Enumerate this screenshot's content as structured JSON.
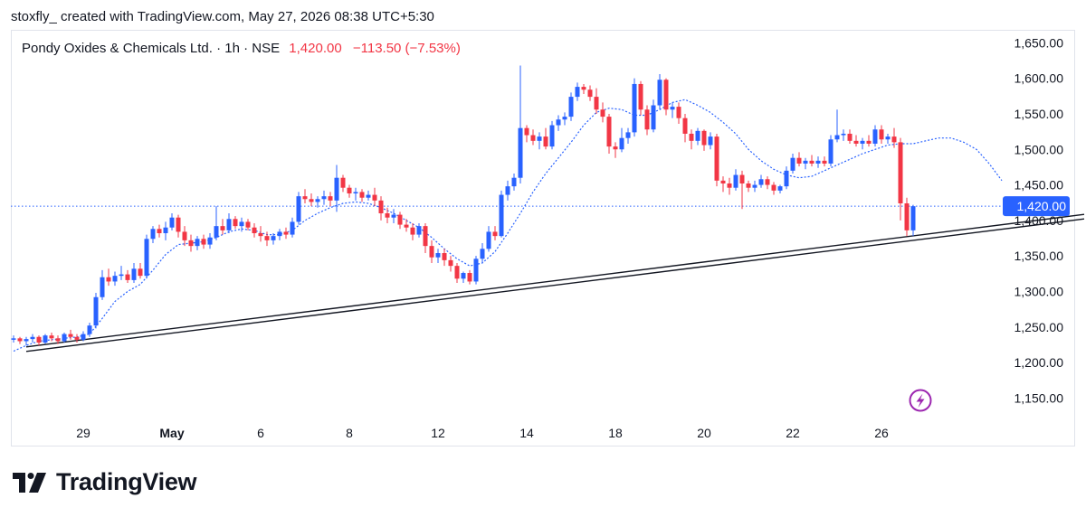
{
  "header": {
    "text": "stoxfly_ created with TradingView.com, May 27, 2026 08:38 UTC+5:30"
  },
  "legend": {
    "name": "Pondy Oxides & Chemicals Ltd. · 1h · NSE",
    "price": "1,420.00",
    "change": "−113.50 (−7.53%)"
  },
  "footer": {
    "logo_text": "TradingView"
  },
  "colors": {
    "up": "#2962ff",
    "down": "#f23645",
    "ma": "#2962ff",
    "price_line": "#2962ff",
    "trendline": "#131722",
    "icon": "#9c27b0"
  },
  "icons": {
    "lightning": "lightning-icon",
    "logo": "tradingview-logo-icon"
  },
  "chart_data": {
    "type": "candlestick",
    "title": "Pondy Oxides & Chemicals Ltd. · 1h · NSE",
    "ylim": [
      1125,
      1667
    ],
    "y_ticks": [
      "1,650.00",
      "1,600.00",
      "1,550.00",
      "1,500.00",
      "1,450.00",
      "1,400.00",
      "1,350.00",
      "1,300.00",
      "1,250.00",
      "1,200.00",
      "1,150.00"
    ],
    "y_tick_values": [
      1650,
      1600,
      1550,
      1500,
      1450,
      1400,
      1350,
      1300,
      1250,
      1200,
      1150
    ],
    "x_ticks": [
      {
        "label": "29",
        "index": 11,
        "month": false
      },
      {
        "label": "May",
        "index": 25,
        "month": true
      },
      {
        "label": "6",
        "index": 39,
        "month": false
      },
      {
        "label": "8",
        "index": 53,
        "month": false
      },
      {
        "label": "12",
        "index": 67,
        "month": false
      },
      {
        "label": "14",
        "index": 81,
        "month": false
      },
      {
        "label": "18",
        "index": 95,
        "month": false
      },
      {
        "label": "20",
        "index": 109,
        "month": false
      },
      {
        "label": "22",
        "index": 123,
        "month": false
      },
      {
        "label": "26",
        "index": 137,
        "month": false
      }
    ],
    "last_price": 1420,
    "last_price_label": "1,420.00",
    "trendline": {
      "start_index": 2,
      "start_value": 1222,
      "end_index": 156,
      "end_value": 1397
    },
    "ohlc": [
      [
        1232,
        1238,
        1228,
        1234
      ],
      [
        1234,
        1236,
        1226,
        1230
      ],
      [
        1230,
        1236,
        1224,
        1233
      ],
      [
        1233,
        1240,
        1228,
        1236
      ],
      [
        1236,
        1238,
        1224,
        1228
      ],
      [
        1228,
        1240,
        1226,
        1238
      ],
      [
        1238,
        1242,
        1230,
        1234
      ],
      [
        1234,
        1238,
        1226,
        1230
      ],
      [
        1230,
        1242,
        1228,
        1240
      ],
      [
        1240,
        1246,
        1232,
        1236
      ],
      [
        1236,
        1240,
        1228,
        1232
      ],
      [
        1232,
        1244,
        1230,
        1240
      ],
      [
        1240,
        1256,
        1236,
        1252
      ],
      [
        1252,
        1298,
        1248,
        1292
      ],
      [
        1292,
        1330,
        1288,
        1320
      ],
      [
        1320,
        1332,
        1308,
        1314
      ],
      [
        1314,
        1328,
        1308,
        1322
      ],
      [
        1322,
        1336,
        1316,
        1324
      ],
      [
        1324,
        1330,
        1312,
        1316
      ],
      [
        1316,
        1340,
        1312,
        1332
      ],
      [
        1332,
        1340,
        1318,
        1322
      ],
      [
        1322,
        1380,
        1318,
        1374
      ],
      [
        1374,
        1392,
        1368,
        1388
      ],
      [
        1388,
        1394,
        1376,
        1382
      ],
      [
        1382,
        1398,
        1372,
        1390
      ],
      [
        1390,
        1410,
        1386,
        1404
      ],
      [
        1404,
        1408,
        1376,
        1384
      ],
      [
        1384,
        1392,
        1364,
        1372
      ],
      [
        1372,
        1380,
        1356,
        1364
      ],
      [
        1364,
        1378,
        1358,
        1374
      ],
      [
        1374,
        1380,
        1360,
        1366
      ],
      [
        1366,
        1382,
        1360,
        1376
      ],
      [
        1376,
        1420,
        1372,
        1392
      ],
      [
        1392,
        1402,
        1380,
        1386
      ],
      [
        1386,
        1410,
        1382,
        1402
      ],
      [
        1402,
        1406,
        1388,
        1392
      ],
      [
        1392,
        1404,
        1384,
        1398
      ],
      [
        1398,
        1402,
        1386,
        1390
      ],
      [
        1390,
        1396,
        1376,
        1382
      ],
      [
        1382,
        1392,
        1370,
        1378
      ],
      [
        1378,
        1384,
        1364,
        1372
      ],
      [
        1372,
        1382,
        1366,
        1378
      ],
      [
        1378,
        1388,
        1372,
        1384
      ],
      [
        1384,
        1390,
        1374,
        1380
      ],
      [
        1380,
        1404,
        1376,
        1398
      ],
      [
        1398,
        1440,
        1394,
        1434
      ],
      [
        1434,
        1444,
        1424,
        1430
      ],
      [
        1430,
        1438,
        1420,
        1426
      ],
      [
        1426,
        1434,
        1418,
        1430
      ],
      [
        1430,
        1442,
        1422,
        1434
      ],
      [
        1434,
        1440,
        1420,
        1428
      ],
      [
        1428,
        1478,
        1412,
        1460
      ],
      [
        1460,
        1464,
        1440,
        1446
      ],
      [
        1446,
        1450,
        1432,
        1438
      ],
      [
        1438,
        1446,
        1428,
        1440
      ],
      [
        1440,
        1444,
        1426,
        1432
      ],
      [
        1432,
        1442,
        1428,
        1436
      ],
      [
        1436,
        1446,
        1420,
        1428
      ],
      [
        1428,
        1434,
        1400,
        1410
      ],
      [
        1410,
        1418,
        1396,
        1404
      ],
      [
        1404,
        1416,
        1396,
        1408
      ],
      [
        1408,
        1412,
        1388,
        1394
      ],
      [
        1394,
        1402,
        1384,
        1390
      ],
      [
        1390,
        1396,
        1372,
        1380
      ],
      [
        1380,
        1396,
        1376,
        1392
      ],
      [
        1392,
        1396,
        1354,
        1364
      ],
      [
        1364,
        1372,
        1340,
        1348
      ],
      [
        1348,
        1360,
        1340,
        1354
      ],
      [
        1354,
        1360,
        1336,
        1344
      ],
      [
        1344,
        1350,
        1328,
        1336
      ],
      [
        1336,
        1340,
        1312,
        1318
      ],
      [
        1318,
        1328,
        1312,
        1326
      ],
      [
        1326,
        1330,
        1310,
        1314
      ],
      [
        1314,
        1350,
        1310,
        1346
      ],
      [
        1346,
        1368,
        1340,
        1360
      ],
      [
        1360,
        1392,
        1356,
        1384
      ],
      [
        1384,
        1392,
        1372,
        1378
      ],
      [
        1378,
        1442,
        1376,
        1436
      ],
      [
        1436,
        1456,
        1428,
        1448
      ],
      [
        1448,
        1466,
        1442,
        1460
      ],
      [
        1460,
        1618,
        1452,
        1530
      ],
      [
        1530,
        1534,
        1510,
        1520
      ],
      [
        1520,
        1528,
        1506,
        1512
      ],
      [
        1512,
        1524,
        1500,
        1518
      ],
      [
        1518,
        1530,
        1500,
        1504
      ],
      [
        1504,
        1540,
        1500,
        1534
      ],
      [
        1534,
        1548,
        1526,
        1542
      ],
      [
        1542,
        1552,
        1534,
        1546
      ],
      [
        1546,
        1580,
        1540,
        1574
      ],
      [
        1574,
        1594,
        1568,
        1588
      ],
      [
        1588,
        1592,
        1578,
        1584
      ],
      [
        1584,
        1590,
        1568,
        1574
      ],
      [
        1574,
        1586,
        1550,
        1556
      ],
      [
        1556,
        1566,
        1538,
        1546
      ],
      [
        1546,
        1550,
        1494,
        1504
      ],
      [
        1504,
        1510,
        1488,
        1500
      ],
      [
        1500,
        1530,
        1496,
        1516
      ],
      [
        1516,
        1530,
        1508,
        1524
      ],
      [
        1524,
        1600,
        1518,
        1592
      ],
      [
        1592,
        1596,
        1548,
        1556
      ],
      [
        1556,
        1562,
        1520,
        1528
      ],
      [
        1528,
        1570,
        1524,
        1562
      ],
      [
        1562,
        1606,
        1556,
        1598
      ],
      [
        1598,
        1600,
        1548,
        1556
      ],
      [
        1556,
        1566,
        1544,
        1560
      ],
      [
        1560,
        1566,
        1536,
        1544
      ],
      [
        1544,
        1550,
        1510,
        1522
      ],
      [
        1522,
        1528,
        1500,
        1512
      ],
      [
        1512,
        1530,
        1506,
        1526
      ],
      [
        1526,
        1528,
        1498,
        1506
      ],
      [
        1506,
        1524,
        1500,
        1518
      ],
      [
        1518,
        1522,
        1448,
        1456
      ],
      [
        1456,
        1462,
        1440,
        1452
      ],
      [
        1452,
        1460,
        1436,
        1446
      ],
      [
        1446,
        1472,
        1442,
        1464
      ],
      [
        1464,
        1470,
        1416,
        1452
      ],
      [
        1452,
        1456,
        1440,
        1446
      ],
      [
        1446,
        1456,
        1440,
        1450
      ],
      [
        1450,
        1464,
        1446,
        1458
      ],
      [
        1458,
        1462,
        1444,
        1450
      ],
      [
        1450,
        1454,
        1436,
        1442
      ],
      [
        1442,
        1450,
        1438,
        1448
      ],
      [
        1448,
        1476,
        1444,
        1470
      ],
      [
        1470,
        1494,
        1466,
        1488
      ],
      [
        1488,
        1496,
        1476,
        1480
      ],
      [
        1480,
        1488,
        1472,
        1484
      ],
      [
        1484,
        1492,
        1476,
        1480
      ],
      [
        1480,
        1490,
        1474,
        1484
      ],
      [
        1484,
        1490,
        1476,
        1480
      ],
      [
        1480,
        1520,
        1476,
        1514
      ],
      [
        1514,
        1556,
        1510,
        1520
      ],
      [
        1520,
        1528,
        1512,
        1522
      ],
      [
        1522,
        1528,
        1508,
        1512
      ],
      [
        1512,
        1520,
        1504,
        1508
      ],
      [
        1508,
        1516,
        1500,
        1512
      ],
      [
        1512,
        1520,
        1504,
        1508
      ],
      [
        1508,
        1534,
        1504,
        1528
      ],
      [
        1528,
        1534,
        1508,
        1514
      ],
      [
        1514,
        1522,
        1508,
        1518
      ],
      [
        1518,
        1530,
        1502,
        1510
      ],
      [
        1510,
        1516,
        1400,
        1424
      ],
      [
        1424,
        1432,
        1378,
        1386
      ],
      [
        1386,
        1422,
        1378,
        1420
      ]
    ],
    "moving_average": [
      [
        0,
        1216
      ],
      [
        2,
        1224
      ],
      [
        4,
        1230
      ],
      [
        6,
        1232
      ],
      [
        8,
        1234
      ],
      [
        10,
        1236
      ],
      [
        12,
        1240
      ],
      [
        14,
        1262
      ],
      [
        16,
        1286
      ],
      [
        18,
        1300
      ],
      [
        20,
        1310
      ],
      [
        22,
        1330
      ],
      [
        24,
        1352
      ],
      [
        26,
        1366
      ],
      [
        28,
        1368
      ],
      [
        30,
        1370
      ],
      [
        32,
        1376
      ],
      [
        34,
        1384
      ],
      [
        36,
        1388
      ],
      [
        38,
        1386
      ],
      [
        40,
        1380
      ],
      [
        42,
        1380
      ],
      [
        44,
        1386
      ],
      [
        46,
        1400
      ],
      [
        48,
        1410
      ],
      [
        50,
        1418
      ],
      [
        52,
        1424
      ],
      [
        54,
        1426
      ],
      [
        56,
        1424
      ],
      [
        58,
        1418
      ],
      [
        60,
        1410
      ],
      [
        62,
        1400
      ],
      [
        64,
        1390
      ],
      [
        66,
        1376
      ],
      [
        68,
        1360
      ],
      [
        70,
        1346
      ],
      [
        72,
        1336
      ],
      [
        74,
        1340
      ],
      [
        76,
        1356
      ],
      [
        78,
        1382
      ],
      [
        80,
        1410
      ],
      [
        82,
        1440
      ],
      [
        84,
        1466
      ],
      [
        86,
        1488
      ],
      [
        88,
        1510
      ],
      [
        90,
        1534
      ],
      [
        92,
        1552
      ],
      [
        94,
        1558
      ],
      [
        96,
        1556
      ],
      [
        98,
        1548
      ],
      [
        100,
        1548
      ],
      [
        102,
        1556
      ],
      [
        104,
        1566
      ],
      [
        106,
        1570
      ],
      [
        108,
        1562
      ],
      [
        110,
        1552
      ],
      [
        112,
        1538
      ],
      [
        114,
        1522
      ],
      [
        116,
        1500
      ],
      [
        118,
        1484
      ],
      [
        120,
        1472
      ],
      [
        122,
        1464
      ],
      [
        124,
        1460
      ],
      [
        126,
        1462
      ],
      [
        128,
        1470
      ],
      [
        130,
        1478
      ],
      [
        132,
        1486
      ],
      [
        134,
        1494
      ],
      [
        136,
        1500
      ],
      [
        138,
        1506
      ],
      [
        140,
        1508
      ],
      [
        142,
        1508
      ],
      [
        144,
        1512
      ],
      [
        146,
        1516
      ],
      [
        148,
        1516
      ],
      [
        150,
        1510
      ],
      [
        152,
        1500
      ],
      [
        154,
        1480
      ],
      [
        156,
        1456
      ]
    ]
  }
}
